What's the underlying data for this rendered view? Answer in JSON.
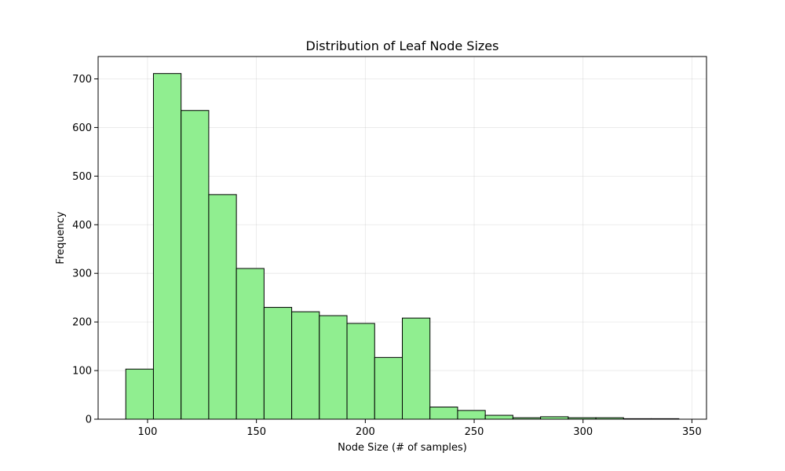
{
  "chart_data": {
    "type": "bar",
    "title": "Distribution of Leaf Node Sizes",
    "xlabel": "Node Size (# of samples)",
    "ylabel": "Frequency",
    "xlim": [
      77.3,
      356.7
    ],
    "ylim": [
      0,
      746
    ],
    "x_ticks": [
      100,
      150,
      200,
      250,
      300,
      350
    ],
    "y_ticks": [
      0,
      100,
      200,
      300,
      400,
      500,
      600,
      700
    ],
    "grid": true,
    "bar_color": "#90ee90",
    "edge_color": "#000000",
    "bins": [
      {
        "x0": 90.0,
        "x1": 102.7,
        "value": 103
      },
      {
        "x0": 102.7,
        "x1": 115.4,
        "value": 711
      },
      {
        "x0": 115.4,
        "x1": 128.1,
        "value": 635
      },
      {
        "x0": 128.1,
        "x1": 140.8,
        "value": 462
      },
      {
        "x0": 140.8,
        "x1": 153.5,
        "value": 310
      },
      {
        "x0": 153.5,
        "x1": 166.2,
        "value": 230
      },
      {
        "x0": 166.2,
        "x1": 178.9,
        "value": 221
      },
      {
        "x0": 178.9,
        "x1": 191.6,
        "value": 213
      },
      {
        "x0": 191.6,
        "x1": 204.3,
        "value": 197
      },
      {
        "x0": 204.3,
        "x1": 217.0,
        "value": 127
      },
      {
        "x0": 217.0,
        "x1": 229.7,
        "value": 208
      },
      {
        "x0": 229.7,
        "x1": 242.4,
        "value": 25
      },
      {
        "x0": 242.4,
        "x1": 255.1,
        "value": 18
      },
      {
        "x0": 255.1,
        "x1": 267.8,
        "value": 8
      },
      {
        "x0": 267.8,
        "x1": 280.5,
        "value": 3
      },
      {
        "x0": 280.5,
        "x1": 293.2,
        "value": 5
      },
      {
        "x0": 293.2,
        "x1": 305.9,
        "value": 3
      },
      {
        "x0": 305.9,
        "x1": 318.6,
        "value": 3
      },
      {
        "x0": 318.6,
        "x1": 331.3,
        "value": 1
      },
      {
        "x0": 331.3,
        "x1": 344.0,
        "value": 1
      }
    ]
  }
}
